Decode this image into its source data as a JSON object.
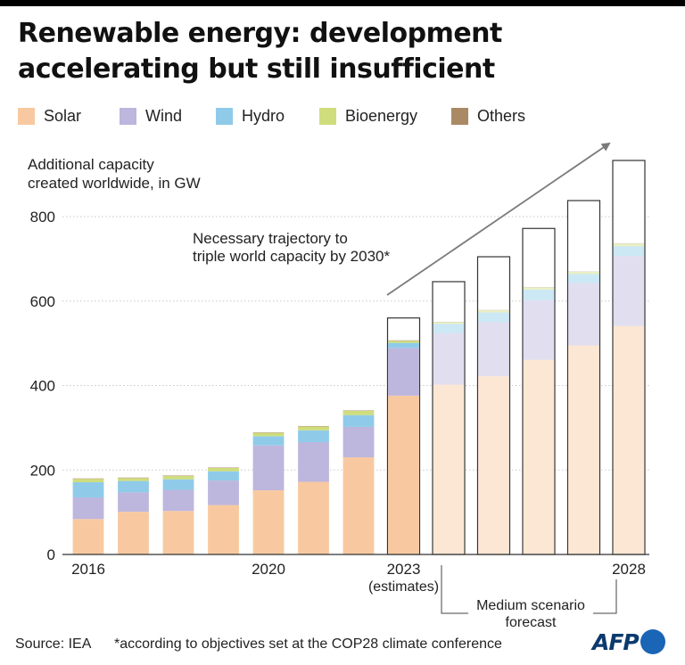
{
  "title": "Renewable energy: development accelerating but still insufficient",
  "legend": [
    {
      "label": "Solar",
      "color": "#f8c9a0"
    },
    {
      "label": "Wind",
      "color": "#bdb6dd"
    },
    {
      "label": "Hydro",
      "color": "#8fcbe9"
    },
    {
      "label": "Bioenergy",
      "color": "#cfdd7d"
    },
    {
      "label": "Others",
      "color": "#a98a64"
    }
  ],
  "chart_data": {
    "type": "bar",
    "stacked": true,
    "title": "Renewable energy: development accelerating but still insufficient",
    "ylabel": "Additional capacity\ncreated worldwide, in GW",
    "ylim": [
      0,
      850
    ],
    "yticks": [
      0,
      200,
      400,
      600,
      800
    ],
    "grid": true,
    "legend_position": "top",
    "categories": [
      "2016",
      "2017",
      "2018",
      "2019",
      "2020",
      "2021",
      "2022",
      "2023",
      "2024",
      "2025",
      "2026",
      "2027",
      "2028"
    ],
    "xtick_labels": [
      "2016",
      "",
      "",
      "",
      "2020",
      "",
      "",
      "2023",
      "",
      "",
      "",
      "",
      "2028"
    ],
    "xtick_sublabel": {
      "category": "2023",
      "text": "(estimates)"
    },
    "forecast_bracket": {
      "from": "2024",
      "to": "2028",
      "label": "Medium scenario\nforecast"
    },
    "series": [
      {
        "name": "Solar",
        "values": [
          84,
          101,
          103,
          117,
          152,
          172,
          230,
          376,
          402,
          422,
          461,
          495,
          541
        ]
      },
      {
        "name": "Wind",
        "values": [
          51,
          46,
          50,
          58,
          106,
          94,
          72,
          113,
          122,
          128,
          141,
          148,
          166
        ]
      },
      {
        "name": "Hydro",
        "values": [
          36,
          27,
          25,
          22,
          22,
          28,
          28,
          12,
          22,
          23,
          25,
          21,
          23
        ]
      },
      {
        "name": "Bioenergy",
        "values": [
          8,
          7,
          8,
          8,
          8,
          9,
          10,
          5,
          4,
          5,
          5,
          5,
          6
        ]
      },
      {
        "name": "Others",
        "values": [
          1,
          1,
          1,
          1,
          1,
          1,
          1,
          1,
          1,
          1,
          1,
          1,
          1
        ]
      }
    ],
    "projected_from_index": 8,
    "necessary_trajectory": {
      "label": "Necessary trajectory to\ntriple world capacity by 2030*",
      "categories": [
        "2023",
        "2024",
        "2025",
        "2026",
        "2027",
        "2028"
      ],
      "values": [
        560,
        646,
        705,
        772,
        838,
        933
      ]
    }
  },
  "footer": {
    "source": "Source: IEA",
    "note": "*according to objectives set at the COP28 climate conference",
    "brand": "AFP"
  }
}
